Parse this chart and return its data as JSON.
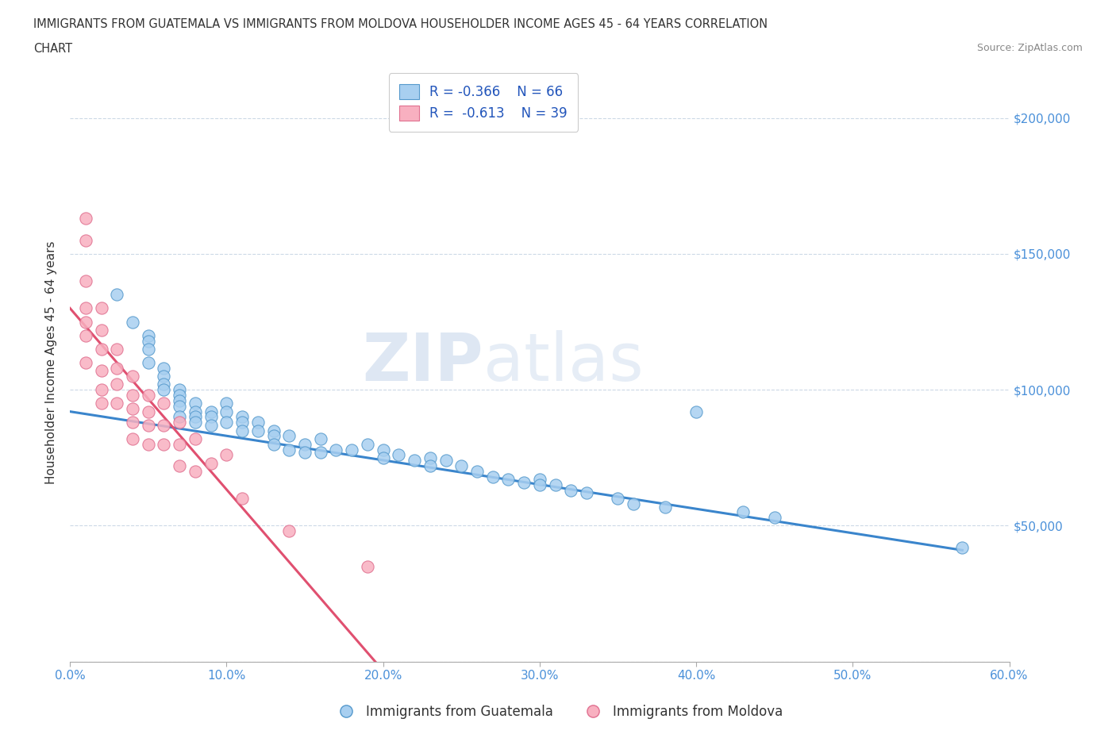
{
  "title_line1": "IMMIGRANTS FROM GUATEMALA VS IMMIGRANTS FROM MOLDOVA HOUSEHOLDER INCOME AGES 45 - 64 YEARS CORRELATION",
  "title_line2": "CHART",
  "source": "Source: ZipAtlas.com",
  "ylabel": "Householder Income Ages 45 - 64 years",
  "guatemala_color": "#a8cff0",
  "guatemala_edge": "#5599cc",
  "moldova_color": "#f8b0c0",
  "moldova_edge": "#e07090",
  "guatemala_line_color": "#3a85cc",
  "moldova_line_color": "#e05070",
  "R_guatemala": -0.366,
  "N_guatemala": 66,
  "R_moldova": -0.613,
  "N_moldova": 39,
  "xlim": [
    0.0,
    0.6
  ],
  "ylim": [
    0,
    220000
  ],
  "xticks": [
    0.0,
    0.1,
    0.2,
    0.3,
    0.4,
    0.5,
    0.6
  ],
  "yticks": [
    0,
    50000,
    100000,
    150000,
    200000
  ],
  "ytick_labels": [
    "",
    "$50,000",
    "$100,000",
    "$150,000",
    "$200,000"
  ],
  "xtick_labels": [
    "0.0%",
    "10.0%",
    "20.0%",
    "30.0%",
    "40.0%",
    "50.0%",
    "60.0%"
  ],
  "watermark_zip": "ZIP",
  "watermark_atlas": "atlas",
  "legend_label1": "R = -0.366    N = 66",
  "legend_label2": "R =  -0.613    N = 39",
  "legend_bottom_label1": "Immigrants from Guatemala",
  "legend_bottom_label2": "Immigrants from Moldova",
  "guatemala_line_x0": 0.0,
  "guatemala_line_y0": 92000,
  "guatemala_line_x1": 0.57,
  "guatemala_line_y1": 41000,
  "moldova_line_x0": 0.0,
  "moldova_line_y0": 130000,
  "moldova_line_x1": 0.195,
  "moldova_line_y1": 0,
  "guatemala_x": [
    0.03,
    0.04,
    0.05,
    0.05,
    0.05,
    0.05,
    0.06,
    0.06,
    0.06,
    0.06,
    0.07,
    0.07,
    0.07,
    0.07,
    0.07,
    0.08,
    0.08,
    0.08,
    0.08,
    0.09,
    0.09,
    0.09,
    0.1,
    0.1,
    0.1,
    0.11,
    0.11,
    0.11,
    0.12,
    0.12,
    0.13,
    0.13,
    0.13,
    0.14,
    0.14,
    0.15,
    0.15,
    0.16,
    0.16,
    0.17,
    0.18,
    0.19,
    0.2,
    0.2,
    0.21,
    0.22,
    0.23,
    0.23,
    0.24,
    0.25,
    0.26,
    0.27,
    0.28,
    0.29,
    0.3,
    0.3,
    0.31,
    0.32,
    0.33,
    0.35,
    0.36,
    0.38,
    0.4,
    0.43,
    0.45,
    0.57
  ],
  "guatemala_y": [
    135000,
    125000,
    120000,
    118000,
    115000,
    110000,
    108000,
    105000,
    102000,
    100000,
    100000,
    98000,
    96000,
    94000,
    90000,
    95000,
    92000,
    90000,
    88000,
    92000,
    90000,
    87000,
    95000,
    92000,
    88000,
    90000,
    88000,
    85000,
    88000,
    85000,
    85000,
    83000,
    80000,
    83000,
    78000,
    80000,
    77000,
    82000,
    77000,
    78000,
    78000,
    80000,
    78000,
    75000,
    76000,
    74000,
    75000,
    72000,
    74000,
    72000,
    70000,
    68000,
    67000,
    66000,
    67000,
    65000,
    65000,
    63000,
    62000,
    60000,
    58000,
    57000,
    92000,
    55000,
    53000,
    42000
  ],
  "moldova_x": [
    0.01,
    0.01,
    0.01,
    0.01,
    0.01,
    0.01,
    0.01,
    0.02,
    0.02,
    0.02,
    0.02,
    0.02,
    0.02,
    0.03,
    0.03,
    0.03,
    0.03,
    0.04,
    0.04,
    0.04,
    0.04,
    0.04,
    0.05,
    0.05,
    0.05,
    0.05,
    0.06,
    0.06,
    0.06,
    0.07,
    0.07,
    0.07,
    0.08,
    0.08,
    0.09,
    0.1,
    0.11,
    0.14,
    0.19
  ],
  "moldova_y": [
    163000,
    155000,
    140000,
    130000,
    125000,
    120000,
    110000,
    130000,
    122000,
    115000,
    107000,
    100000,
    95000,
    115000,
    108000,
    102000,
    95000,
    105000,
    98000,
    93000,
    88000,
    82000,
    98000,
    92000,
    87000,
    80000,
    95000,
    87000,
    80000,
    88000,
    80000,
    72000,
    82000,
    70000,
    73000,
    76000,
    60000,
    48000,
    35000
  ]
}
